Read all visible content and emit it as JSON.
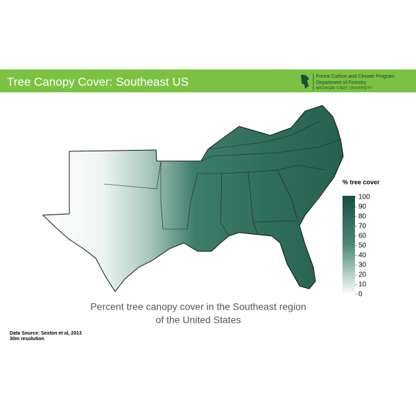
{
  "header": {
    "title": "Tree Canopy Cover: Southeast US"
  },
  "logo": {
    "lines": [
      "Forest Carbon and Climate Program",
      "Department of Forestry",
      "MICHIGAN STATE UNIVERSITY"
    ]
  },
  "legend": {
    "title": "% tree cover",
    "ticks": [
      100,
      90,
      80,
      70,
      60,
      50,
      40,
      30,
      20,
      10,
      0
    ],
    "range": [
      0,
      100
    ]
  },
  "caption": [
    "Percent tree canopy cover in the Southeast region",
    "of the United States"
  ],
  "source": [
    "Data Source: Sexton et al, 2013",
    "30m resolution"
  ]
}
